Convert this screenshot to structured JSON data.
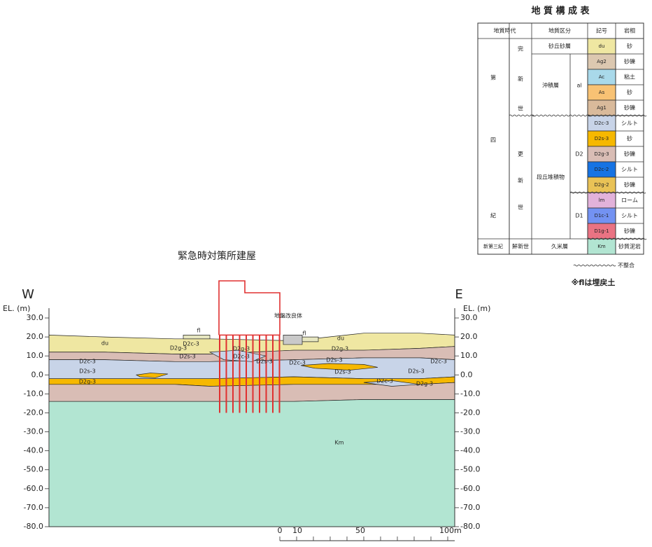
{
  "table": {
    "title": "地 質 構 成 表",
    "headers": [
      "地質時代",
      "地質区分",
      "記号",
      "岩相"
    ],
    "rows": [
      {
        "symbol": "du",
        "rock": "砂",
        "color": "#efe7a2"
      },
      {
        "symbol": "Ag2",
        "rock": "砂礫",
        "color": "#dcc8b0"
      },
      {
        "symbol": "Ac",
        "rock": "粘土",
        "color": "#a9d9ea"
      },
      {
        "symbol": "As",
        "rock": "砂",
        "color": "#f8c274"
      },
      {
        "symbol": "Ag1",
        "rock": "砂礫",
        "color": "#d9ba9b"
      },
      {
        "symbol": "D2c-3",
        "rock": "シルト",
        "color": "#c8d4e8"
      },
      {
        "symbol": "D2s-3",
        "rock": "砂",
        "color": "#f6b800"
      },
      {
        "symbol": "D2g-3",
        "rock": "砂礫",
        "color": "#d9bdb5"
      },
      {
        "symbol": "D2c-2",
        "rock": "シルト",
        "color": "#1673e3"
      },
      {
        "symbol": "D2g-2",
        "rock": "砂礫",
        "color": "#e9c256"
      },
      {
        "symbol": "lm",
        "rock": "ローム",
        "color": "#e2b2da"
      },
      {
        "symbol": "D1c-1",
        "rock": "シルト",
        "color": "#7392f2"
      },
      {
        "symbol": "D1g-1",
        "rock": "砂礫",
        "color": "#ea7383"
      },
      {
        "symbol": "Km",
        "rock": "砂質泥岩",
        "color": "#b2e5d2"
      }
    ],
    "cells": [
      "第",
      "四",
      "紀",
      "完",
      "新",
      "世",
      "更",
      "新",
      "世",
      "新第三紀",
      "鮮新世",
      "砂丘砂層",
      "沖積層",
      "al",
      "段丘堆積物",
      "D2",
      "D1",
      "久米層"
    ],
    "legend_note": "不整合",
    "footnote": "※flは埋戻土"
  },
  "section": {
    "building_title": "緊急時対策所建屋",
    "west": "W",
    "east": "E",
    "axis_label": "EL. (m)",
    "elevation_labels": [
      "30.0",
      "20.0",
      "10.0",
      "0.0",
      "-10.0",
      "-20.0",
      "-30.0",
      "-40.0",
      "-50.0",
      "-60.0",
      "-70.0",
      "-80.0"
    ],
    "labels": [
      "du",
      "du",
      "fl",
      "fl",
      "地盤改良体",
      "D2g-3",
      "D2c-3",
      "D2s-3",
      "D2g-3",
      "D2g-3",
      "D2c-3",
      "D2s-3",
      "D2c-3",
      "D2s-3",
      "D2c-3",
      "D2s-3",
      "D2s-3",
      "D2c-3",
      "D2s-3",
      "D2g-3",
      "D2c-3",
      "D2g-3",
      "Km"
    ],
    "scale_labels": [
      "0",
      "10",
      "50",
      "100m"
    ]
  }
}
